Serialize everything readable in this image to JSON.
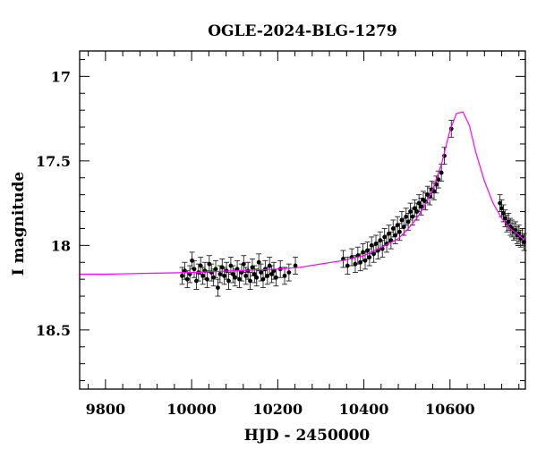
{
  "chart_data": {
    "type": "scatter",
    "title": "OGLE-2024-BLG-1279",
    "xlabel": "HJD - 2450000",
    "ylabel": "I magnitude",
    "xlim": [
      9740,
      10775
    ],
    "ylim": [
      18.85,
      16.85
    ],
    "y_inverted": true,
    "x_ticks": [
      9800,
      10000,
      10200,
      10400,
      10600
    ],
    "y_ticks": [
      17,
      17.5,
      18,
      18.5
    ],
    "x_tick_labels": [
      "9800",
      "10000",
      "10200",
      "10400",
      "10600"
    ],
    "y_tick_labels": [
      "17",
      "17.5",
      "18",
      "18.5"
    ],
    "grid": false,
    "legend": "none",
    "series": [
      {
        "kind": "model",
        "color": "#ff00ff",
        "x": [
          9740,
          9800,
          9900,
          10000,
          10100,
          10200,
          10250,
          10300,
          10350,
          10400,
          10450,
          10480,
          10500,
          10520,
          10540,
          10560,
          10580,
          10600,
          10615,
          10630,
          10645,
          10660,
          10680,
          10700,
          10720,
          10740,
          10760,
          10775
        ],
        "y": [
          18.17,
          18.17,
          18.165,
          18.16,
          18.15,
          18.14,
          18.13,
          18.11,
          18.09,
          18.06,
          18.0,
          17.96,
          17.91,
          17.85,
          17.77,
          17.67,
          17.52,
          17.32,
          17.22,
          17.21,
          17.29,
          17.45,
          17.62,
          17.75,
          17.84,
          17.9,
          17.94,
          17.97
        ]
      },
      {
        "kind": "observations",
        "color": "#000000",
        "x": [
          9978,
          9984,
          9990,
          9996,
          10001,
          10006,
          10011,
          10016,
          10021,
          10026,
          10031,
          10036,
          10041,
          10046,
          10051,
          10056,
          10061,
          10066,
          10071,
          10076,
          10081,
          10086,
          10091,
          10096,
          10101,
          10106,
          10111,
          10116,
          10121,
          10126,
          10131,
          10136,
          10141,
          10146,
          10151,
          10156,
          10161,
          10166,
          10171,
          10176,
          10181,
          10186,
          10191,
          10196,
          10206,
          10216,
          10226,
          10241,
          10352,
          10362,
          10372,
          10380,
          10386,
          10392,
          10398,
          10403,
          10408,
          10413,
          10418,
          10423,
          10428,
          10433,
          10438,
          10443,
          10448,
          10453,
          10458,
          10463,
          10468,
          10473,
          10478,
          10483,
          10488,
          10493,
          10498,
          10503,
          10508,
          10513,
          10518,
          10523,
          10528,
          10533,
          10538,
          10543,
          10548,
          10553,
          10558,
          10563,
          10568,
          10573,
          10580,
          10587,
          10603,
          10716,
          10720,
          10724,
          10728,
          10732,
          10736,
          10740,
          10744,
          10748,
          10752,
          10756,
          10760,
          10764,
          10768,
          10772
        ],
        "y": [
          18.18,
          18.15,
          18.2,
          18.17,
          18.09,
          18.14,
          18.21,
          18.16,
          18.12,
          18.18,
          18.15,
          18.2,
          18.11,
          18.16,
          18.19,
          18.14,
          18.25,
          18.17,
          18.13,
          18.18,
          18.15,
          18.21,
          18.12,
          18.17,
          18.19,
          18.14,
          18.2,
          18.16,
          18.11,
          18.18,
          18.15,
          18.21,
          18.13,
          18.17,
          18.19,
          18.1,
          18.16,
          18.2,
          18.14,
          18.18,
          18.12,
          18.17,
          18.15,
          18.19,
          18.14,
          18.18,
          18.16,
          18.12,
          18.08,
          18.12,
          18.07,
          18.11,
          18.06,
          18.1,
          18.04,
          18.09,
          18.03,
          18.07,
          18.0,
          18.05,
          17.99,
          18.03,
          17.97,
          18.02,
          17.95,
          17.99,
          17.93,
          17.97,
          17.9,
          17.94,
          17.88,
          17.92,
          17.85,
          17.89,
          17.83,
          17.86,
          17.8,
          17.83,
          17.78,
          17.8,
          17.75,
          17.77,
          17.73,
          17.74,
          17.7,
          17.71,
          17.67,
          17.68,
          17.64,
          17.61,
          17.57,
          17.47,
          17.31,
          17.75,
          17.78,
          17.81,
          17.84,
          17.87,
          17.86,
          17.89,
          17.9,
          17.92,
          17.91,
          17.94,
          17.93,
          17.96,
          17.95,
          17.98
        ],
        "yerr": 0.05
      }
    ]
  }
}
